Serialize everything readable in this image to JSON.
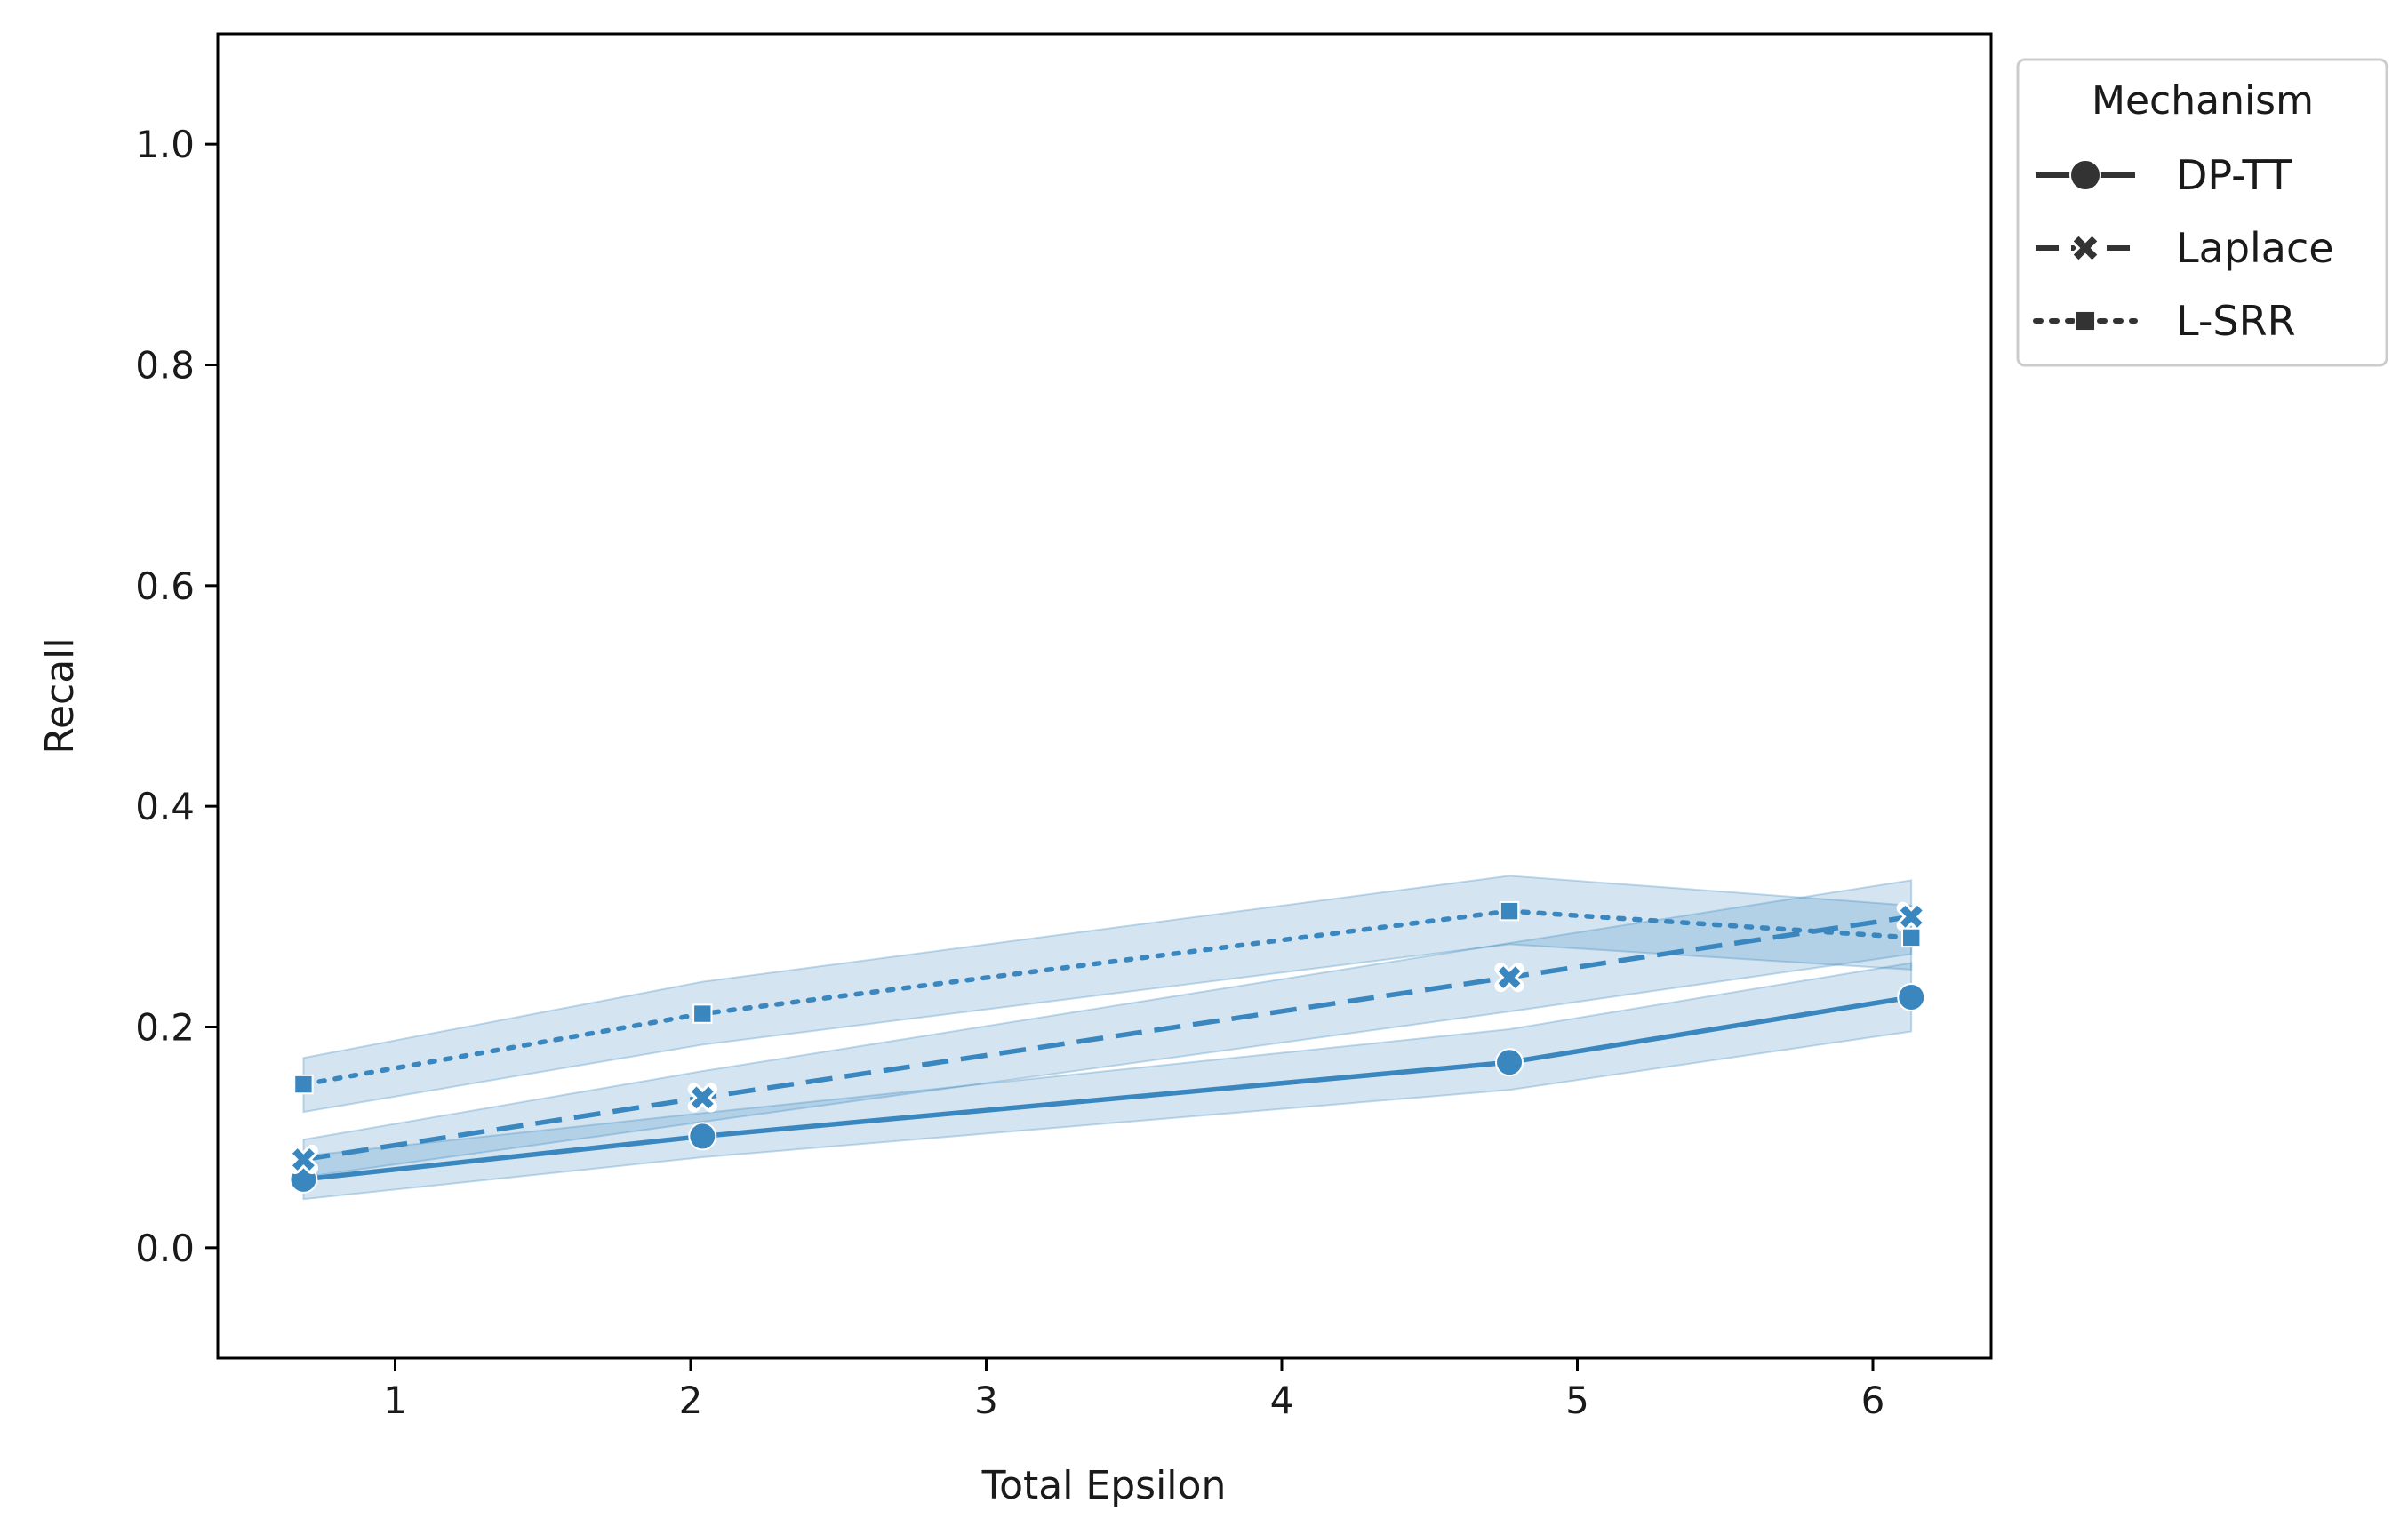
{
  "chart_data": {
    "type": "line",
    "title": "",
    "xlabel": "Total Epsilon",
    "ylabel": "Recall",
    "xlim": [
      0.4,
      6.4
    ],
    "ylim": [
      -0.1,
      1.1
    ],
    "x_ticks": [
      1,
      2,
      3,
      4,
      5,
      6
    ],
    "y_ticks": [
      0.0,
      0.2,
      0.4,
      0.6,
      0.8,
      1.0
    ],
    "x_tick_labels": [
      "1",
      "2",
      "3",
      "4",
      "5",
      "6"
    ],
    "y_tick_labels": [
      "0.0",
      "0.2",
      "0.4",
      "0.6",
      "0.8",
      "1.0"
    ],
    "grid": false,
    "legend": {
      "title": "Mechanism",
      "placement": "outside-top-right"
    },
    "colors": {
      "line": "#3a87c0",
      "band": "#3a87c0",
      "legend_line": "#333333",
      "axis": "#000000"
    },
    "series": [
      {
        "name": "DP-TT",
        "marker": "circle",
        "dash": "solid",
        "x": [
          0.69,
          2.04,
          4.77,
          6.13
        ],
        "y": [
          0.062,
          0.101,
          0.168,
          0.227
        ],
        "ci_low": [
          0.044,
          0.082,
          0.143,
          0.196
        ],
        "ci_high": [
          0.083,
          0.122,
          0.198,
          0.258
        ]
      },
      {
        "name": "Laplace",
        "marker": "x",
        "dash": "dashed",
        "x": [
          0.69,
          2.04,
          4.77,
          6.13
        ],
        "y": [
          0.08,
          0.136,
          0.245,
          0.3
        ],
        "ci_low": [
          0.064,
          0.114,
          0.214,
          0.266
        ],
        "ci_high": [
          0.098,
          0.16,
          0.276,
          0.333
        ]
      },
      {
        "name": "L-SRR",
        "marker": "square",
        "dash": "dotted",
        "x": [
          0.69,
          2.04,
          4.77,
          6.13
        ],
        "y": [
          0.148,
          0.212,
          0.305,
          0.281
        ],
        "ci_low": [
          0.123,
          0.184,
          0.275,
          0.252
        ],
        "ci_high": [
          0.172,
          0.241,
          0.337,
          0.31
        ]
      }
    ]
  }
}
